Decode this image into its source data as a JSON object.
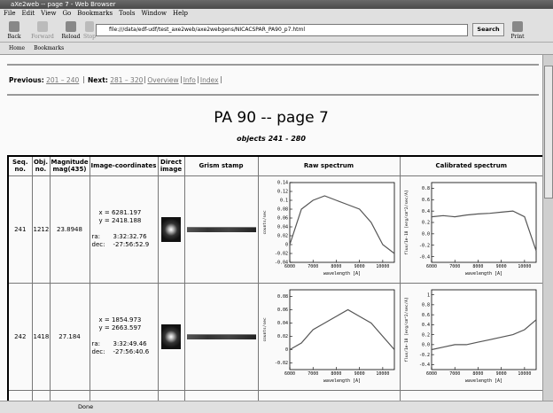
{
  "window": {
    "title": "aXe2web -- page 7 - Web Browser"
  },
  "menu": [
    "File",
    "Edit",
    "View",
    "Go",
    "Bookmarks",
    "Tools",
    "Window",
    "Help"
  ],
  "toolbar": {
    "back": "Back",
    "forward": "Forward",
    "reload": "Reload",
    "stop": "Stop",
    "url": "file:///data/edf-udf/test_axe2web/axe2webgens/NICACSPAR_PA90_p7.html",
    "search": "Search",
    "print": "Print"
  },
  "bookmarks_bar": [
    "Home",
    "Bookmarks"
  ],
  "nav": {
    "previous_label": "Previous:",
    "previous": "201 – 240",
    "next_label": "Next:",
    "next": "281 – 320",
    "links": [
      "Overview",
      "Info",
      "Index"
    ]
  },
  "page": {
    "title": "PA 90 -- page 7",
    "subtitle": "objects 241 - 280"
  },
  "table": {
    "headers": [
      "Seq. no.",
      "Obj. no.",
      "Magnitude mag(435)",
      "Image-coordinates",
      "Direct image",
      "Grism stamp",
      "Raw spectrum",
      "Calibrated spectrum"
    ],
    "rows": [
      {
        "seq": "241",
        "obj": "1212",
        "mag": "23.8948",
        "x": "x = 6281.197",
        "y": "y = 2418.188",
        "ra_label": "ra:",
        "ra": "3:32:32.76",
        "dec_label": "dec:",
        "dec": "-27:56:52.9",
        "raw_spectrum": {
          "type": "line",
          "xlabel": "wavelength [A]",
          "ylabel": "counts/sec",
          "x": [
            6000,
            6500,
            7000,
            7500,
            8000,
            8500,
            9000,
            9500,
            10000,
            10500
          ],
          "values": [
            0.0,
            0.08,
            0.1,
            0.11,
            0.1,
            0.09,
            0.08,
            0.05,
            0.0,
            -0.02
          ],
          "xlim": [
            6000,
            10500
          ],
          "ylim": [
            -0.04,
            0.14
          ],
          "xticks": [
            6000,
            7000,
            8000,
            9000,
            10000
          ],
          "yticks": [
            -0.04,
            -0.02,
            0,
            0.02,
            0.04,
            0.06,
            0.08,
            0.1,
            0.12,
            0.14
          ]
        },
        "calibrated_spectrum": {
          "type": "line",
          "xlabel": "wavelength [A]",
          "ylabel": "flux/1e-18 [erg/cm^2/sec/A]",
          "x": [
            6000,
            6500,
            7000,
            7500,
            8000,
            8500,
            9000,
            9500,
            10000,
            10500
          ],
          "values": [
            0.3,
            0.32,
            0.3,
            0.33,
            0.35,
            0.36,
            0.38,
            0.4,
            0.3,
            -0.3
          ],
          "xlim": [
            6000,
            10500
          ],
          "ylim": [
            -0.5,
            0.9
          ],
          "xticks": [
            6000,
            7000,
            8000,
            9000,
            10000
          ],
          "yticks": [
            -0.4,
            -0.2,
            {
              "value": 0,
              "label": "0.0"
            },
            0.2,
            0.4,
            0.6,
            0.8
          ]
        }
      },
      {
        "seq": "242",
        "obj": "1418",
        "mag": "27.184",
        "x": "x = 1854.973",
        "y": "y = 2663.597",
        "ra_label": "ra:",
        "ra": "3:32:49.46",
        "dec_label": "dec:",
        "dec": "-27:56:40.6",
        "raw_spectrum": {
          "type": "line",
          "xlabel": "wavelength [A]",
          "ylabel": "counts/sec",
          "x": [
            6000,
            6500,
            7000,
            7500,
            8000,
            8500,
            9000,
            9500,
            10000,
            10500
          ],
          "values": [
            0.0,
            0.01,
            0.03,
            0.04,
            0.05,
            0.06,
            0.05,
            0.04,
            0.02,
            0.0
          ],
          "xlim": [
            6000,
            10500
          ],
          "ylim": [
            -0.03,
            0.09
          ],
          "xticks": [
            6000,
            7000,
            8000,
            9000,
            10000
          ],
          "yticks": [
            -0.02,
            0,
            0.02,
            0.04,
            0.06,
            0.08
          ]
        },
        "calibrated_spectrum": {
          "type": "line",
          "xlabel": "wavelength [A]",
          "ylabel": "flux/1e-18 [erg/cm^2/sec/A]",
          "x": [
            6000,
            6500,
            7000,
            7500,
            8000,
            8500,
            9000,
            9500,
            10000,
            10500
          ],
          "values": [
            -0.1,
            -0.05,
            0,
            0,
            0.05,
            0.1,
            0.15,
            0.2,
            0.3,
            0.5
          ],
          "xlim": [
            6000,
            10500
          ],
          "ylim": [
            -0.5,
            1.1
          ],
          "xticks": [
            6000,
            7000,
            8000,
            9000,
            10000
          ],
          "yticks": [
            -0.4,
            -0.2,
            {
              "value": 0,
              "label": "0.0"
            },
            0.2,
            0.4,
            0.6,
            0.8,
            1
          ]
        }
      }
    ]
  },
  "status": "Done"
}
